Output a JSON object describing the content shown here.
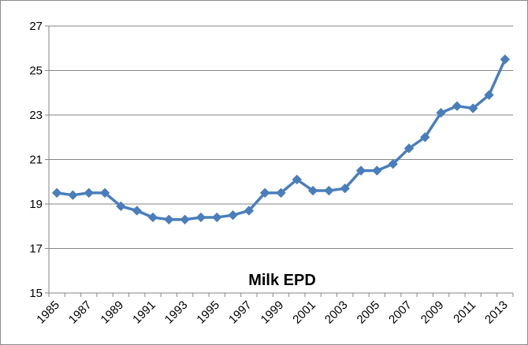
{
  "chart_data": {
    "type": "line",
    "title": "Milk EPD",
    "xlabel": "",
    "ylabel": "",
    "ylim": [
      15,
      27
    ],
    "yticks": [
      15,
      17,
      19,
      21,
      23,
      25,
      27
    ],
    "x_tick_labels": [
      "1985",
      "1987",
      "1989",
      "1991",
      "1993",
      "1995",
      "1997",
      "1999",
      "2001",
      "2003",
      "2005",
      "2007",
      "2009",
      "2011",
      "2013"
    ],
    "grid": true,
    "legend": "none",
    "color": "#4a7ebb",
    "series": [
      {
        "x": [
          1985,
          1986,
          1987,
          1988,
          1989,
          1990,
          1991,
          1992,
          1993,
          1994,
          1995,
          1996,
          1997,
          1998,
          1999,
          2000,
          2001,
          2002,
          2003,
          2004,
          2005,
          2006,
          2007,
          2008,
          2009,
          2010,
          2011,
          2012,
          2013
        ],
        "values": [
          19.5,
          19.4,
          19.5,
          19.5,
          18.9,
          18.7,
          18.4,
          18.3,
          18.3,
          18.4,
          18.4,
          18.5,
          18.7,
          19.5,
          19.5,
          20.1,
          19.6,
          19.6,
          19.7,
          20.5,
          20.5,
          20.8,
          21.5,
          22.0,
          23.1,
          23.4,
          23.3,
          23.9,
          25.5
        ]
      }
    ]
  }
}
